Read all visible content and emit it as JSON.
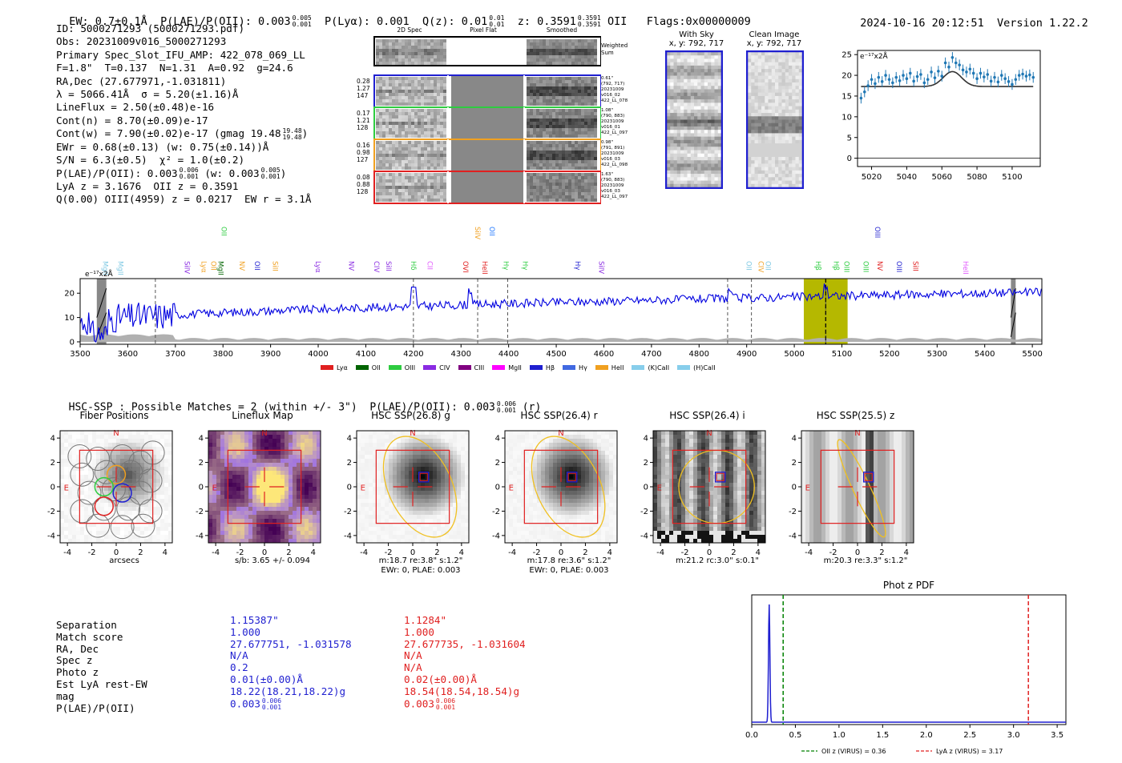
{
  "header": {
    "ew": "EW: 0.7±0.1Å",
    "plae_label": "P(LAE)/P(OII): 0.003",
    "plae_sup": "0.005",
    "plae_sub": "0.001",
    "plya": "P(Lyα): 0.001",
    "qz_label": "Q(z): 0.01",
    "qz_sup": "0.01",
    "qz_sub": "0.01",
    "z_label": "z: 0.3591",
    "z_sup": "0.3591",
    "z_sub": "0.3591",
    "z_line": "OII",
    "flags": "Flags:0x00000009",
    "timestamp": "2024-10-16 20:12:51",
    "version": "Version 1.22.2"
  },
  "info": {
    "lines": [
      "ID: 5000271293 (5000271293.pdf)",
      "Obs: 20231009v016_5000271293",
      "Primary Spec_Slot_IFU_AMP: 422_078_069_LL",
      "F=1.8\"  T=0.137  N=1.31  A=0.92  g=24.6",
      "RA,Dec (27.677971,-1.031811)",
      "λ = 5066.41Å  σ = 5.20(±1.16)Å",
      "LineFlux = 2.50(±0.48)e-16",
      "Cont(n) = 8.70(±0.09)e-17",
      "Cont(w) = 7.90(±0.02)e-17 (gmag 19.48",
      "EWr = 0.68(±0.13) (w: 0.75(±0.14))Å",
      "S/N = 6.3(±0.5)  χ² = 1.0(±0.2)",
      "P(LAE)/P(OII): 0.003",
      "LyA z = 3.1676  OII z = 0.3591",
      "Q(0.00) OIII(4959) z = 0.0217  EW r = 3.1Å"
    ],
    "gmag_sup": "19.48",
    "gmag_sub": "19.48",
    "plae_sup": "0.006",
    "plae_sub": "0.001",
    "plae_w": "(w: 0.003",
    "plae_w_sup": "0.005",
    "plae_w_sub": "0.001"
  },
  "spec2d": {
    "headers": [
      "2D Spec",
      "Pixel Flat",
      "Smoothed"
    ],
    "weighted_sum": "Weighted Sum",
    "fibers": [
      {
        "color": "#1f1fd0",
        "left": [
          "0.28",
          "1.27",
          "147"
        ],
        "right": [
          "0.61\"",
          "(792, 717)",
          "20231009",
          "v016_02",
          "422_LL_078"
        ]
      },
      {
        "color": "#2ecc40",
        "left": [
          "0.17",
          "1.21",
          "128"
        ],
        "right": [
          "1.08\"",
          "(790, 883)",
          "20231009",
          "v016_01",
          "422_LL_097"
        ]
      },
      {
        "color": "#f0a020",
        "left": [
          "0.16",
          "0.98",
          "127"
        ],
        "right": [
          "0.98\"",
          "(791, 891)",
          "20231009",
          "v016_03",
          "422_LL_098"
        ]
      },
      {
        "color": "#e02020",
        "left": [
          "0.08",
          "0.88",
          "128"
        ],
        "right": [
          "1.63\"",
          "(790, 883)",
          "20231009",
          "v016_03",
          "422_LL_097"
        ]
      }
    ]
  },
  "sky": {
    "with_sky_title": "With Sky",
    "with_sky_xy": "x, y: 792, 717",
    "clean_title": "Clean Image",
    "clean_xy": "x, y: 792, 717"
  },
  "zoom_chart": {
    "type": "line",
    "ylabel": "e⁻¹⁷x2Å",
    "xlim": [
      5012,
      5116
    ],
    "ylim": [
      -2,
      26
    ],
    "x_ticks": [
      5020,
      5040,
      5060,
      5080,
      5100
    ],
    "y_ticks": [
      0,
      5,
      10,
      15,
      20,
      25
    ],
    "data_x": [
      5014,
      5016,
      5018,
      5020,
      5022,
      5024,
      5026,
      5028,
      5030,
      5032,
      5034,
      5036,
      5038,
      5040,
      5042,
      5044,
      5046,
      5048,
      5050,
      5052,
      5054,
      5056,
      5058,
      5060,
      5062,
      5064,
      5066,
      5068,
      5070,
      5072,
      5074,
      5076,
      5078,
      5080,
      5082,
      5084,
      5086,
      5088,
      5090,
      5092,
      5094,
      5096,
      5098,
      5100,
      5102,
      5104,
      5106,
      5108,
      5110,
      5112
    ],
    "data_y": [
      14.5,
      16,
      17.5,
      19,
      18,
      19.5,
      18.5,
      20,
      19,
      18.2,
      19.5,
      18.7,
      20,
      19.2,
      20.5,
      18.6,
      19.7,
      20.2,
      18.2,
      19,
      20.8,
      19.4,
      21,
      19.8,
      23,
      22,
      24.3,
      23,
      22.5,
      21.3,
      20.8,
      21.5,
      20.5,
      19.2,
      20.5,
      19.6,
      20.2,
      18.6,
      19.5,
      18.4,
      20,
      19.2,
      18.5,
      17.8,
      19,
      20,
      20.3,
      19.8,
      20.1,
      19.5
    ],
    "err": 1.3,
    "model": {
      "continuum": 17.3,
      "center": 5066,
      "sigma": 5.2,
      "amp": 3.6
    },
    "data_color": "#1f77b4",
    "model_color": "#333333"
  },
  "main_spectrum": {
    "type": "line",
    "ylabel": "e⁻¹⁷x2Å",
    "xlim": [
      3500,
      5520
    ],
    "ylim": [
      -1,
      26
    ],
    "x_ticks": [
      3500,
      3600,
      3700,
      3800,
      3900,
      4000,
      4100,
      4200,
      4300,
      4400,
      4500,
      4600,
      4700,
      4800,
      4900,
      5000,
      5100,
      5200,
      5300,
      5400,
      5500
    ],
    "y_ticks": [
      0,
      10,
      20
    ],
    "continuum_start": 8,
    "continuum_end": 20.5,
    "emission_line": 5066,
    "highlight": [
      5020,
      5112
    ],
    "highlight_color": "#b5b800",
    "masked": [
      [
        3535,
        3555
      ],
      [
        5455,
        5465
      ]
    ],
    "dashed_lines": [
      3658,
      4200,
      4335,
      4398,
      4860,
      4910,
      5066
    ],
    "line_labels": [
      {
        "x": 3543,
        "label": "MgII",
        "color": "#7ec8e3",
        "row": 2
      },
      {
        "x": 3575,
        "label": "MgII",
        "color": "#7ec8e3",
        "row": 2
      },
      {
        "x": 3715,
        "label": "SiIV",
        "color": "#8a2be2",
        "row": 2
      },
      {
        "x": 3750,
        "label": "Lyα",
        "color": "#f0a020",
        "row": 2
      },
      {
        "x": 3770,
        "label": "OII",
        "color": "#f0a020",
        "row": 2
      },
      {
        "x": 3785,
        "label": "MgII",
        "color": "#006400",
        "row": 2
      },
      {
        "x": 3792,
        "label": "OII",
        "color": "#2ecc40",
        "row": 1
      },
      {
        "x": 3830,
        "label": "NV",
        "color": "#f0a020",
        "row": 2
      },
      {
        "x": 3862,
        "label": "OII",
        "color": "#1f1fd0",
        "row": 2
      },
      {
        "x": 3900,
        "label": "SiII",
        "color": "#f0a020",
        "row": 2
      },
      {
        "x": 3990,
        "label": "Lyα",
        "color": "#8a2be2",
        "row": 2
      },
      {
        "x": 4060,
        "label": "NV",
        "color": "#8a2be2",
        "row": 2
      },
      {
        "x": 4113,
        "label": "CIV",
        "color": "#8a2be2",
        "row": 2
      },
      {
        "x": 4138,
        "label": "SiII",
        "color": "#8a2be2",
        "row": 2
      },
      {
        "x": 4190,
        "label": "Hδ",
        "color": "#2ecc40",
        "row": 2
      },
      {
        "x": 4225,
        "label": "CII",
        "color": "#e056fd",
        "row": 2
      },
      {
        "x": 4325,
        "label": "SiIV",
        "color": "#f0a020",
        "row": 1
      },
      {
        "x": 4355,
        "label": "OII",
        "color": "#1f77ff",
        "row": 1
      },
      {
        "x": 4300,
        "label": "OVI",
        "color": "#e02020",
        "row": 2
      },
      {
        "x": 4340,
        "label": "HeII",
        "color": "#e02020",
        "row": 2
      },
      {
        "x": 4385,
        "label": "Hγ",
        "color": "#2ecc40",
        "row": 2
      },
      {
        "x": 4425,
        "label": "Hγ",
        "color": "#2ecc40",
        "row": 2
      },
      {
        "x": 4535,
        "label": "Hγ",
        "color": "#1f1fd0",
        "row": 2
      },
      {
        "x": 4585,
        "label": "SiIV",
        "color": "#8a2be2",
        "row": 2
      },
      {
        "x": 4895,
        "label": "OII",
        "color": "#7ec8e3",
        "row": 2
      },
      {
        "x": 4920,
        "label": "CIV",
        "color": "#f0a020",
        "row": 2
      },
      {
        "x": 4935,
        "label": "OII",
        "color": "#7ec8e3",
        "row": 2
      },
      {
        "x": 5040,
        "label": "Hβ",
        "color": "#2ecc40",
        "row": 2
      },
      {
        "x": 5078,
        "label": "Hβ",
        "color": "#2ecc40",
        "row": 2
      },
      {
        "x": 5100,
        "label": "OIII",
        "color": "#2ecc40",
        "row": 2
      },
      {
        "x": 5140,
        "label": "OIII",
        "color": "#2ecc40",
        "row": 2
      },
      {
        "x": 5165,
        "label": "OIII",
        "color": "#1f1fd0",
        "row": 1
      },
      {
        "x": 5170,
        "label": "NV",
        "color": "#e02020",
        "row": 2
      },
      {
        "x": 5210,
        "label": "OIII",
        "color": "#1f1fd0",
        "row": 2
      },
      {
        "x": 5245,
        "label": "SiII",
        "color": "#e02020",
        "row": 2
      },
      {
        "x": 5350,
        "label": "HeII",
        "color": "#e056fd",
        "row": 2
      }
    ],
    "legend": [
      {
        "label": "Lyα",
        "color": "#e02020"
      },
      {
        "label": "OII",
        "color": "#006400"
      },
      {
        "label": "OIII",
        "color": "#2ecc40"
      },
      {
        "label": "CIV",
        "color": "#8a2be2"
      },
      {
        "label": "CIII",
        "color": "#800080"
      },
      {
        "label": "MgII",
        "color": "#ff00ff"
      },
      {
        "label": "Hβ",
        "color": "#1f1fd0"
      },
      {
        "label": "Hγ",
        "color": "#4169e1"
      },
      {
        "label": "HeII",
        "color": "#f0a020"
      },
      {
        "label": "(K)CaII",
        "color": "#87ceeb"
      },
      {
        "label": "(H)CaII",
        "color": "#87ceeb"
      }
    ]
  },
  "matches": {
    "title": "HSC-SSP : Possible Matches = 2 (within +/- 3\")  P(LAE)/P(OII): 0.003",
    "sup": "0.006",
    "sub": "0.001",
    "suffix": "(r)"
  },
  "cutouts": [
    {
      "title": "Fiber Positions",
      "cap1": "arcsecs",
      "cap2": "",
      "kind": "fiber"
    },
    {
      "title": "Lineflux Map",
      "cap1": "s/b: 3.65 +/- 0.094",
      "cap2": "",
      "kind": "flux"
    },
    {
      "title": "HSC SSP(26.8) g",
      "cap1": "m:18.7  re:3.8\"  s:1.2\"",
      "cap2": "EWr: 0, PLAE: 0.003",
      "kind": "galaxy"
    },
    {
      "title": "HSC SSP(26.4) r",
      "cap1": "m:17.8  re:3.6\"  s:1.2\"",
      "cap2": "EWr: 0, PLAE: 0.003",
      "kind": "galaxy"
    },
    {
      "title": "HSC SSP(26.4) i",
      "cap1": "m:21.2 rc:3.0\"  s:0.1\"",
      "cap2": "",
      "kind": "stripes"
    },
    {
      "title": "HSC SSP(25.5) z",
      "cap1": "m:20.3  re:3.3\"  s:1.2\"",
      "cap2": "",
      "kind": "stripes2"
    }
  ],
  "cutout_axis": {
    "ticks": [
      -4,
      -2,
      0,
      2,
      4
    ],
    "north": "N",
    "east": "E"
  },
  "table": {
    "labels": [
      "Separation",
      "Match score",
      "RA, Dec",
      "Spec z",
      "Photo z",
      "Est LyA rest-EW",
      "mag",
      "P(LAE)/P(OII)"
    ],
    "col1": {
      "color": "#1f1fd0",
      "values": [
        "1.15387\"",
        "1.000",
        "27.677751, -1.031578",
        "N/A",
        "0.2",
        "0.01(±0.00)Å",
        "18.22(18.21,18.22)g",
        "0.003"
      ],
      "plae_sup": "0.006",
      "plae_sub": "0.001"
    },
    "col2": {
      "color": "#e02020",
      "values": [
        "1.1284\"",
        "1.000",
        "27.677735, -1.031604",
        "N/A",
        "N/A",
        "0.02(±0.00)Å",
        "18.54(18.54,18.54)g",
        "0.003"
      ],
      "plae_sup": "0.006",
      "plae_sub": "0.001"
    }
  },
  "photz": {
    "type": "line",
    "title": "Phot z PDF",
    "xlim": [
      0,
      3.6
    ],
    "x_ticks": [
      0.0,
      0.5,
      1.0,
      1.5,
      2.0,
      2.5,
      3.0,
      3.5
    ],
    "peak_z": 0.2,
    "oii_z": 0.36,
    "lya_z": 3.17,
    "legend_oii": "OII z (VIRUS) = 0.36",
    "legend_lya": "LyA z (VIRUS) = 3.17",
    "pdf_color": "#1f1fd0",
    "oii_color": "#008000",
    "lya_color": "#e02020"
  }
}
